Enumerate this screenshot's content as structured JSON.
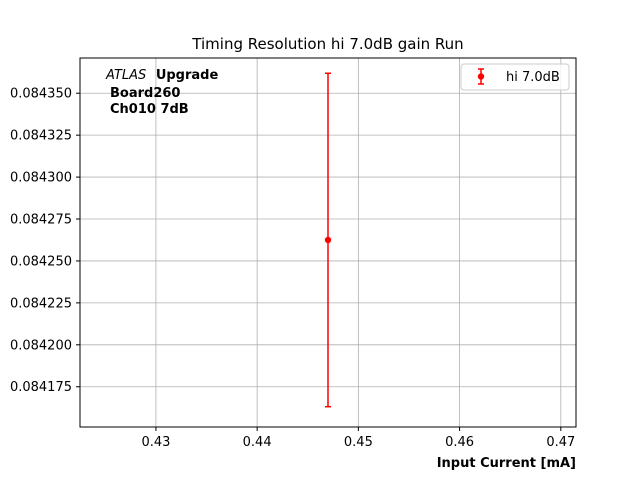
{
  "chart_data": {
    "type": "scatter",
    "title": "Timing Resolution hi 7.0dB gain Run",
    "xlabel": "Input Current [mA]",
    "ylabel": "",
    "xlim": [
      0.4225,
      0.4715
    ],
    "ylim": [
      0.084151,
      0.084371
    ],
    "x_ticks": [
      0.43,
      0.44,
      0.45,
      0.46,
      0.47
    ],
    "x_tick_labels": [
      "0.43",
      "0.44",
      "0.45",
      "0.46",
      "0.47"
    ],
    "y_ticks": [
      0.084175,
      0.0842,
      0.084225,
      0.08425,
      0.084275,
      0.0843,
      0.084325,
      0.08435
    ],
    "y_tick_labels": [
      "0.084175",
      "0.084200",
      "0.084225",
      "0.084250",
      "0.084275",
      "0.084300",
      "0.084325",
      "0.084350"
    ],
    "grid": true,
    "legend_position": "top-right",
    "series": [
      {
        "name": "hi 7.0dB",
        "color": "#ff0000",
        "marker": "circle",
        "points": [
          {
            "x": 0.447,
            "y": 0.0842625,
            "yerr": 9.94e-05
          }
        ]
      }
    ],
    "annotation": {
      "line1_italic": "ATLAS",
      "line1_bold": "Upgrade",
      "line2": "Board260",
      "line3": "Ch010 7dB"
    }
  }
}
